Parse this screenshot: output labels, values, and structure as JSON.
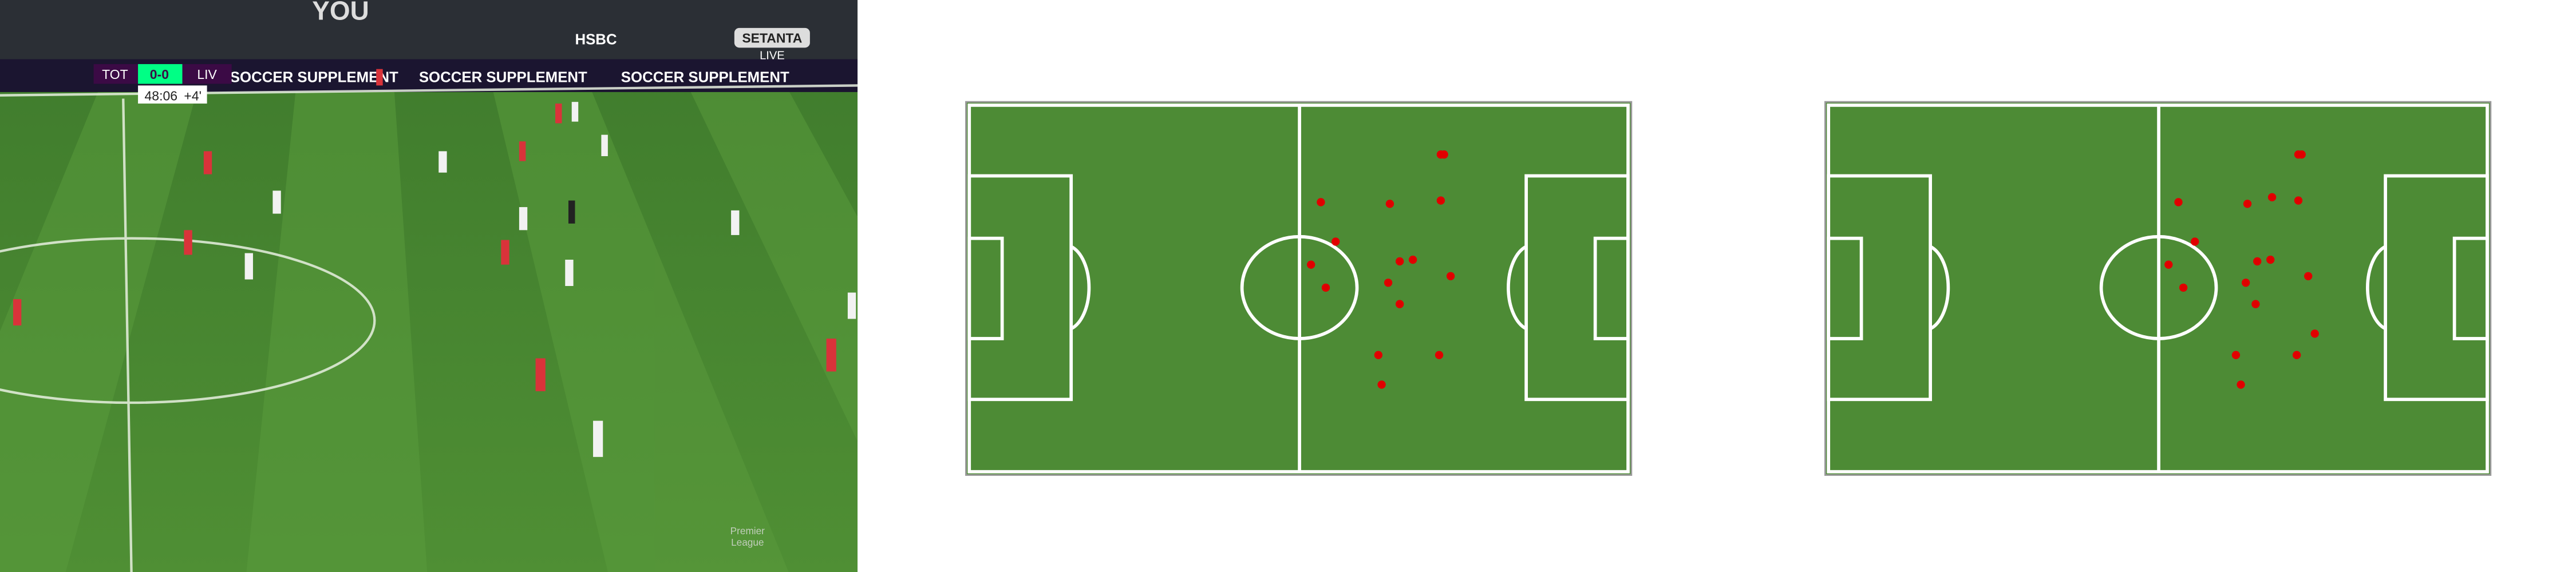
{
  "broadcast": {
    "scoreboard": {
      "home": "TOT",
      "score": "0-0",
      "away": "LIV",
      "clock": "48:06",
      "added_time": "+4'"
    },
    "ads": [
      "YOU",
      "HSBC",
      "SOCCER SUPPLEMENT",
      "SETANTA",
      "LIVE"
    ],
    "logo": [
      "Premier",
      "League"
    ]
  }
}
